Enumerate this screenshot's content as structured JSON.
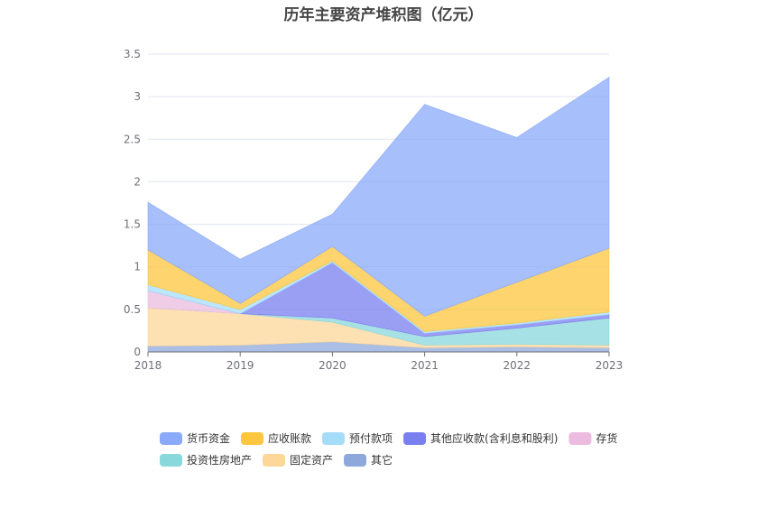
{
  "chart_data": {
    "type": "area",
    "stacked": true,
    "title": "历年主要资产堆积图（亿元）",
    "categories": [
      "2018",
      "2019",
      "2020",
      "2021",
      "2022",
      "2023"
    ],
    "ylim": [
      0,
      3.5
    ],
    "yticks": [
      "0",
      "0.5",
      "1",
      "1.5",
      "2",
      "2.5",
      "3",
      "3.5"
    ],
    "grid": true,
    "legend_position": "bottom",
    "series": [
      {
        "name": "其它",
        "color": "#8fa8dc",
        "values": [
          0.07,
          0.08,
          0.12,
          0.05,
          0.06,
          0.05
        ]
      },
      {
        "name": "固定资产",
        "color": "#fcd799",
        "values": [
          0.45,
          0.37,
          0.23,
          0.03,
          0.03,
          0.03
        ]
      },
      {
        "name": "投资性房地产",
        "color": "#88d8dc",
        "values": [
          0.0,
          0.0,
          0.05,
          0.1,
          0.19,
          0.32
        ]
      },
      {
        "name": "存货",
        "color": "#ebbcdf",
        "values": [
          0.2,
          0.0,
          0.0,
          0.0,
          0.0,
          0.0
        ]
      },
      {
        "name": "其他应收款(含利息和股利)",
        "color": "#7a7ff0",
        "values": [
          0.0,
          0.0,
          0.65,
          0.04,
          0.04,
          0.04
        ]
      },
      {
        "name": "预付款项",
        "color": "#a5ddf9",
        "values": [
          0.07,
          0.05,
          0.02,
          0.02,
          0.02,
          0.03
        ]
      },
      {
        "name": "应收账款",
        "color": "#fcc63e",
        "values": [
          0.41,
          0.07,
          0.17,
          0.18,
          0.48,
          0.75
        ]
      },
      {
        "name": "货币资金",
        "color": "#8aa9f8",
        "values": [
          0.56,
          0.52,
          0.38,
          2.49,
          1.7,
          2.01
        ]
      }
    ]
  }
}
